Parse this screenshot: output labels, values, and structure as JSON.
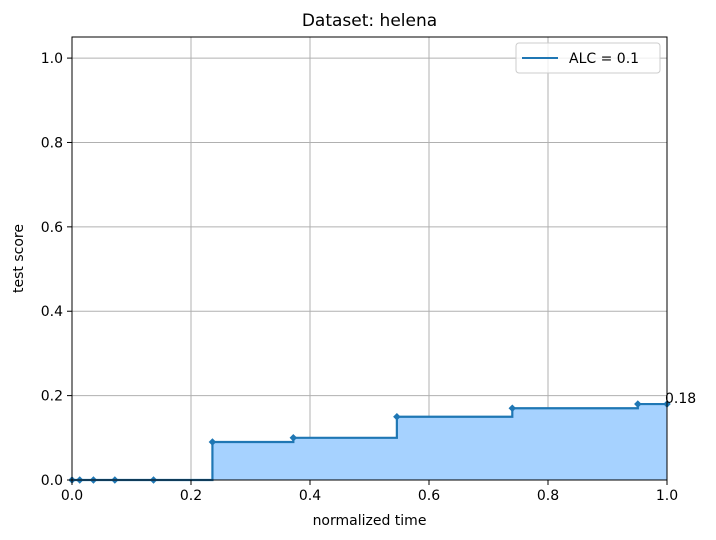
{
  "chart_data": {
    "type": "area",
    "title": "Dataset: helena",
    "xlabel": "normalized time",
    "ylabel": "test score",
    "xlim": [
      0,
      1
    ],
    "ylim": [
      0,
      1.05
    ],
    "xticks": [
      "0.0",
      "0.2",
      "0.4",
      "0.6",
      "0.8",
      "1.0"
    ],
    "xtick_values": [
      0,
      0.2,
      0.4,
      0.6,
      0.8,
      1.0
    ],
    "yticks": [
      "0.0",
      "0.2",
      "0.4",
      "0.6",
      "0.8",
      "1.0"
    ],
    "ytick_values": [
      0,
      0.2,
      0.4,
      0.6,
      0.8,
      1.0
    ],
    "grid": true,
    "step": "post",
    "legend": {
      "label": "ALC = 0.1",
      "placement": "top-right"
    },
    "series": [
      {
        "name": "ALC = 0.1",
        "x": [
          0.0,
          0.013,
          0.036,
          0.072,
          0.137,
          0.236,
          0.372,
          0.546,
          0.74,
          0.951,
          1.0
        ],
        "y": [
          0.0,
          0.0,
          0.0,
          0.0,
          0.0,
          0.09,
          0.1,
          0.15,
          0.17,
          0.18,
          0.18
        ]
      }
    ],
    "annotation": {
      "text": "0.18",
      "x": 1.0,
      "y": 0.18
    },
    "colors": {
      "line": "#1f77b4",
      "fill": "#a6d2ff",
      "grid": "#b0b0b0"
    }
  }
}
